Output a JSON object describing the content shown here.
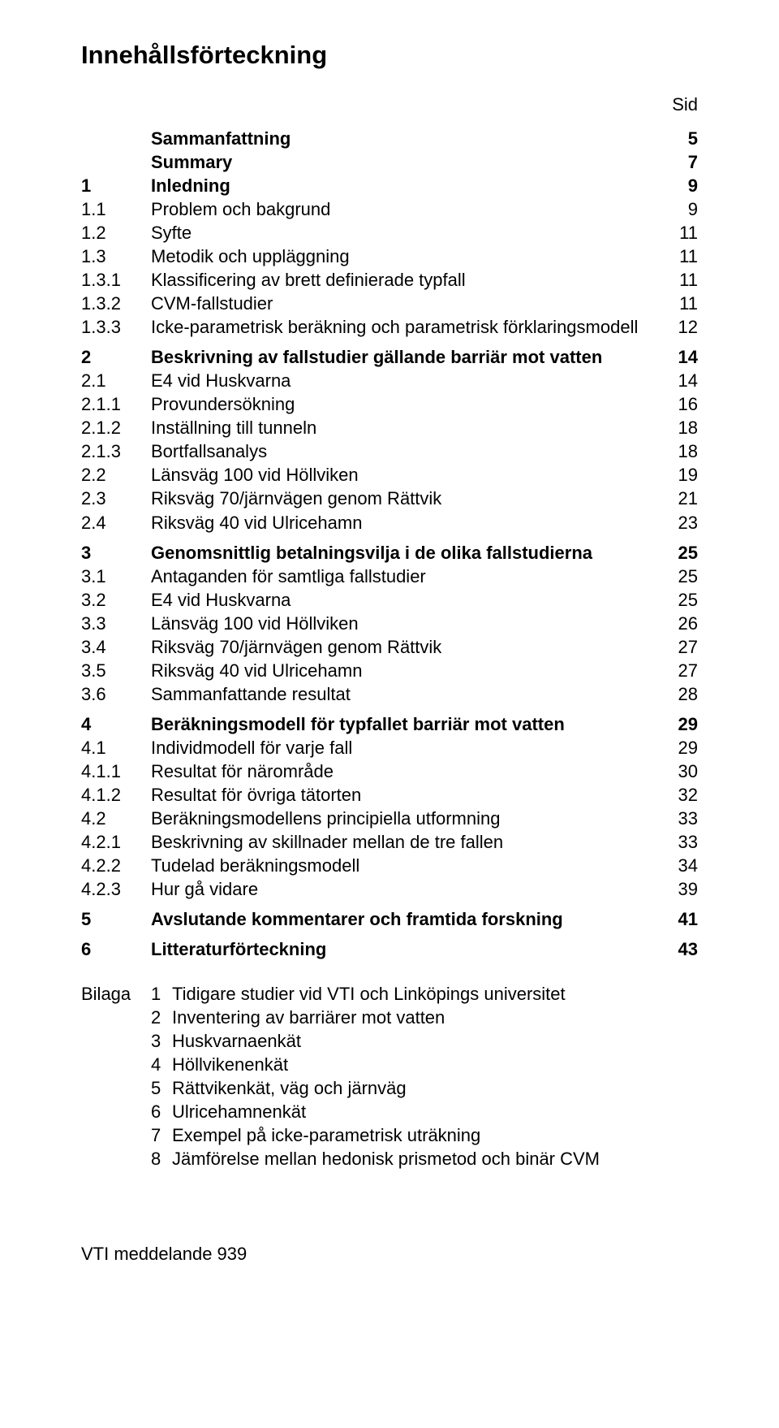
{
  "title": "Innehållsförteckning",
  "sid_label": "Sid",
  "toc": [
    {
      "num": "",
      "label": "Sammanfattning",
      "page": "5",
      "bold": true,
      "gap_after": false
    },
    {
      "num": "",
      "label": "Summary",
      "page": "7",
      "bold": true,
      "gap_after": false
    },
    {
      "num": "1",
      "label": "Inledning",
      "page": "9",
      "bold": true,
      "gap_after": false
    },
    {
      "num": "1.1",
      "label": "Problem och bakgrund",
      "page": "9",
      "bold": false,
      "gap_after": false
    },
    {
      "num": "1.2",
      "label": "Syfte",
      "page": "11",
      "bold": false,
      "gap_after": false
    },
    {
      "num": "1.3",
      "label": "Metodik och uppläggning",
      "page": "11",
      "bold": false,
      "gap_after": false
    },
    {
      "num": "1.3.1",
      "label": "Klassificering av brett definierade typfall",
      "page": "11",
      "bold": false,
      "gap_after": false
    },
    {
      "num": "1.3.2",
      "label": "CVM-fallstudier",
      "page": "11",
      "bold": false,
      "gap_after": false
    },
    {
      "num": "1.3.3",
      "label": "Icke-parametrisk beräkning och parametrisk förklaringsmodell",
      "page": "12",
      "bold": false,
      "gap_after": true
    },
    {
      "num": "2",
      "label": "Beskrivning av fallstudier gällande barriär mot vatten",
      "page": "14",
      "bold": true,
      "gap_after": false
    },
    {
      "num": "2.1",
      "label": "E4 vid Huskvarna",
      "page": "14",
      "bold": false,
      "gap_after": false
    },
    {
      "num": "2.1.1",
      "label": "Provundersökning",
      "page": "16",
      "bold": false,
      "gap_after": false
    },
    {
      "num": "2.1.2",
      "label": "Inställning till tunneln",
      "page": "18",
      "bold": false,
      "gap_after": false
    },
    {
      "num": "2.1.3",
      "label": "Bortfallsanalys",
      "page": "18",
      "bold": false,
      "gap_after": false
    },
    {
      "num": "2.2",
      "label": "Länsväg 100 vid Höllviken",
      "page": "19",
      "bold": false,
      "gap_after": false
    },
    {
      "num": "2.3",
      "label": "Riksväg 70/järnvägen genom Rättvik",
      "page": "21",
      "bold": false,
      "gap_after": false
    },
    {
      "num": "2.4",
      "label": "Riksväg 40 vid Ulricehamn",
      "page": "23",
      "bold": false,
      "gap_after": true
    },
    {
      "num": "3",
      "label": "Genomsnittlig betalningsvilja i de olika fallstudierna",
      "page": "25",
      "bold": true,
      "gap_after": false
    },
    {
      "num": "3.1",
      "label": "Antaganden för samtliga fallstudier",
      "page": "25",
      "bold": false,
      "gap_after": false
    },
    {
      "num": "3.2",
      "label": "E4 vid Huskvarna",
      "page": "25",
      "bold": false,
      "gap_after": false
    },
    {
      "num": "3.3",
      "label": "Länsväg 100 vid Höllviken",
      "page": "26",
      "bold": false,
      "gap_after": false
    },
    {
      "num": "3.4",
      "label": "Riksväg 70/järnvägen genom Rättvik",
      "page": "27",
      "bold": false,
      "gap_after": false
    },
    {
      "num": "3.5",
      "label": "Riksväg 40 vid Ulricehamn",
      "page": "27",
      "bold": false,
      "gap_after": false
    },
    {
      "num": "3.6",
      "label": "Sammanfattande resultat",
      "page": "28",
      "bold": false,
      "gap_after": true
    },
    {
      "num": "4",
      "label": "Beräkningsmodell för typfallet barriär mot vatten",
      "page": "29",
      "bold": true,
      "gap_after": false
    },
    {
      "num": "4.1",
      "label": "Individmodell för varje fall",
      "page": "29",
      "bold": false,
      "gap_after": false
    },
    {
      "num": "4.1.1",
      "label": "Resultat för närområde",
      "page": "30",
      "bold": false,
      "gap_after": false
    },
    {
      "num": "4.1.2",
      "label": "Resultat för övriga tätorten",
      "page": "32",
      "bold": false,
      "gap_after": false
    },
    {
      "num": "4.2",
      "label": "Beräkningsmodellens principiella utformning",
      "page": "33",
      "bold": false,
      "gap_after": false
    },
    {
      "num": "4.2.1",
      "label": "Beskrivning av skillnader mellan de tre fallen",
      "page": "33",
      "bold": false,
      "gap_after": false
    },
    {
      "num": "4.2.2",
      "label": "Tudelad beräkningsmodell",
      "page": "34",
      "bold": false,
      "gap_after": false
    },
    {
      "num": "4.2.3",
      "label": "Hur gå vidare",
      "page": "39",
      "bold": false,
      "gap_after": true
    },
    {
      "num": "5",
      "label": "Avslutande kommentarer och framtida forskning",
      "page": "41",
      "bold": true,
      "gap_after": true
    },
    {
      "num": "6",
      "label": "Litteraturförteckning",
      "page": "43",
      "bold": true,
      "gap_after": false
    }
  ],
  "bilaga": {
    "prefix": "Bilaga",
    "items": [
      {
        "num": "1",
        "label": "Tidigare studier vid VTI och Linköpings universitet"
      },
      {
        "num": "2",
        "label": "Inventering av barriärer mot vatten"
      },
      {
        "num": "3",
        "label": "Huskvarnaenkät"
      },
      {
        "num": "4",
        "label": "Höllvikenenkät"
      },
      {
        "num": "5",
        "label": "Rättvikenkät, väg och järnväg"
      },
      {
        "num": "6",
        "label": "Ulricehamnenkät"
      },
      {
        "num": "7",
        "label": "Exempel på icke-parametrisk uträkning"
      },
      {
        "num": "8",
        "label": "Jämförelse mellan hedonisk prismetod och binär CVM"
      }
    ]
  },
  "footer": "VTI meddelande 939"
}
